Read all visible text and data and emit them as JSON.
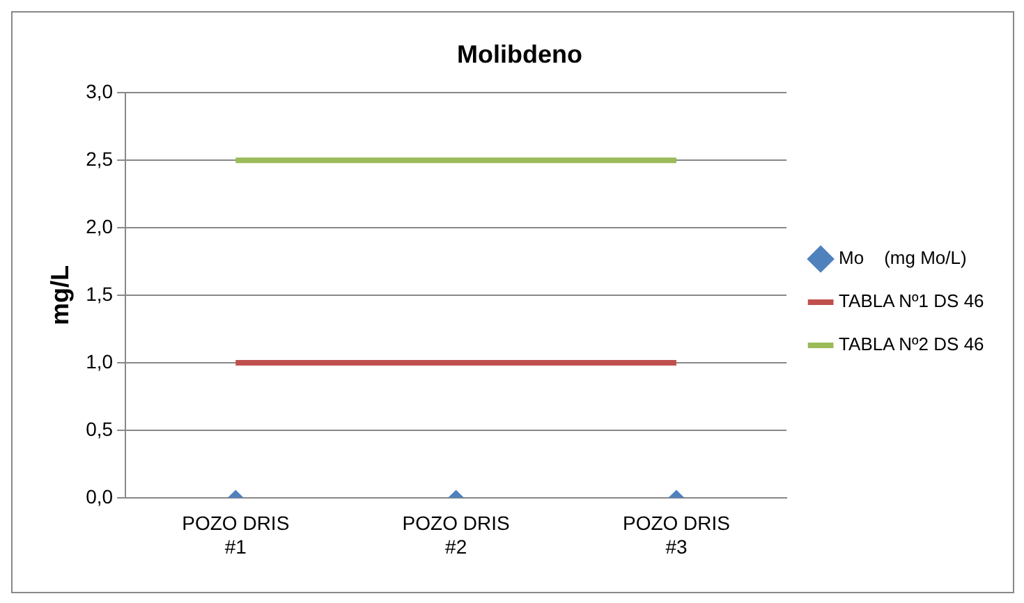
{
  "chart_data": {
    "type": "line",
    "title": "Molibdeno",
    "ylabel": "mg/L",
    "categories": [
      "POZO DRIS #1",
      "POZO DRIS #2",
      "POZO DRIS #3"
    ],
    "series": [
      {
        "name": "Mo    (mg Mo/L)",
        "type": "scatter",
        "marker": "diamond",
        "color": "#4f81bd",
        "values": [
          0,
          0,
          0
        ]
      },
      {
        "name": "TABLA Nº1 DS 46",
        "marker": "none",
        "color": "#c0504d",
        "values": [
          1,
          1,
          1
        ]
      },
      {
        "name": "TABLA Nº2 DS 46",
        "marker": "none",
        "color": "#9bbb59",
        "values": [
          2.5,
          2.5,
          2.5
        ]
      }
    ],
    "ylim": [
      0,
      3
    ],
    "yticks": [
      {
        "value": 0,
        "label": "0,0"
      },
      {
        "value": 0.5,
        "label": "0,5"
      },
      {
        "value": 1,
        "label": "1,0"
      },
      {
        "value": 1.5,
        "label": "1,5"
      },
      {
        "value": 2,
        "label": "2,0"
      },
      {
        "value": 2.5,
        "label": "2,5"
      },
      {
        "value": 3,
        "label": "3,0"
      }
    ],
    "grid": "y",
    "legend": "right"
  }
}
